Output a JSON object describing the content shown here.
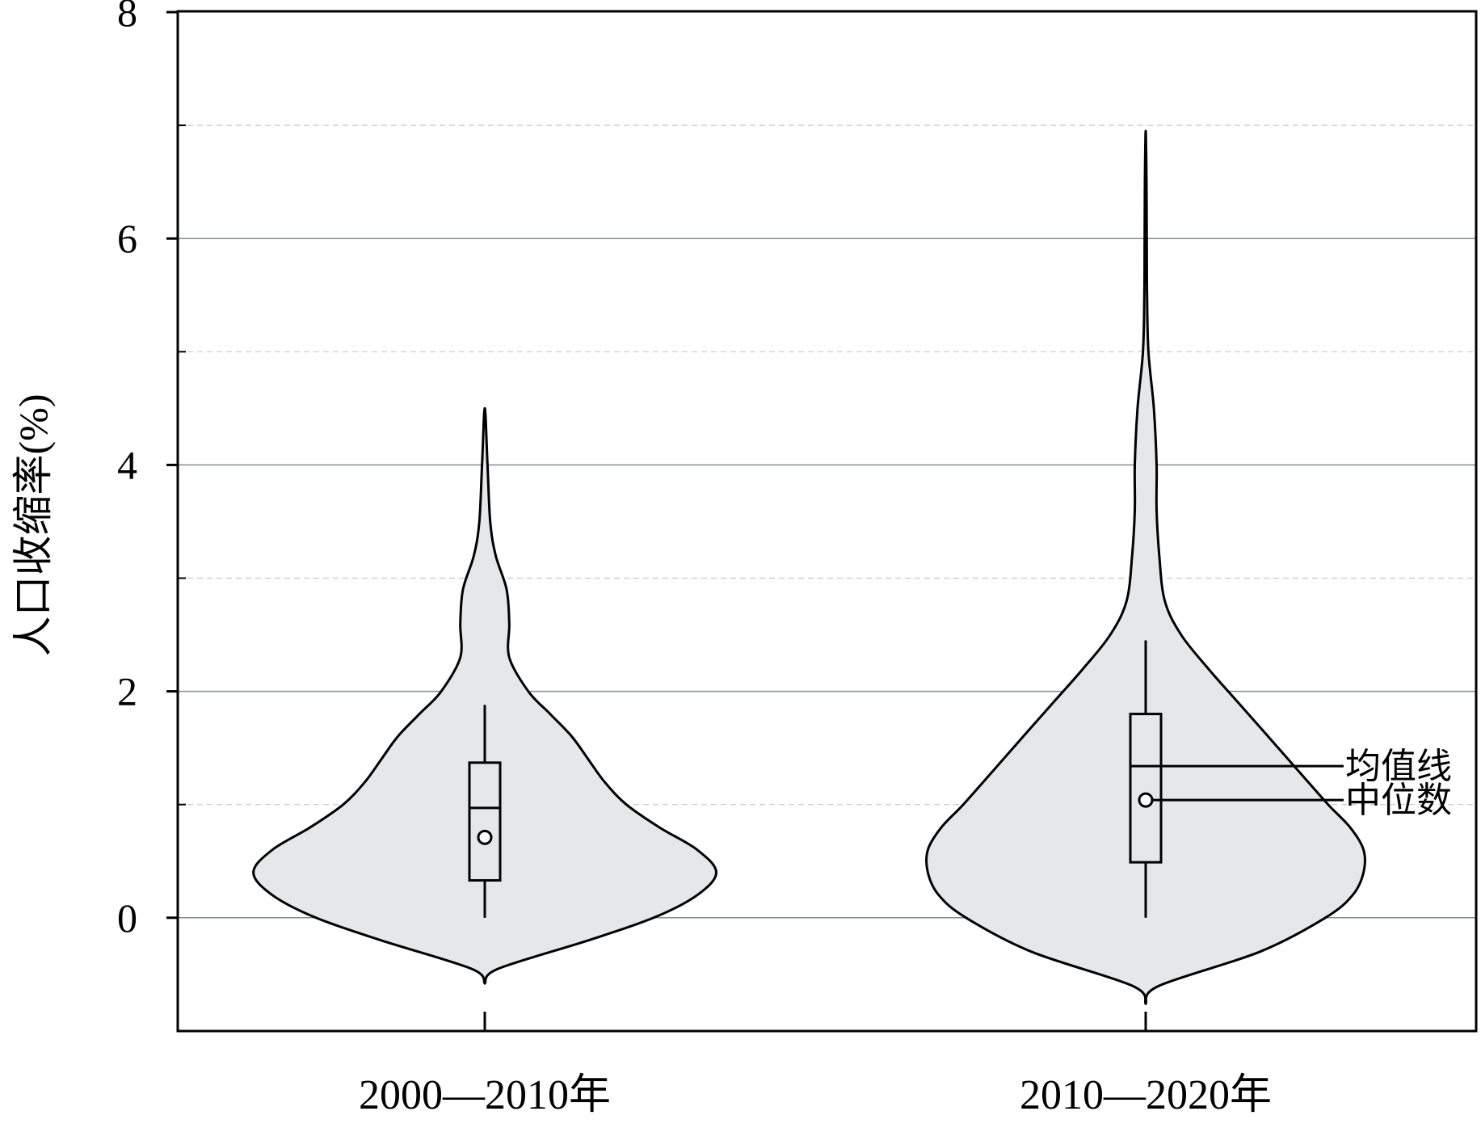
{
  "chart_data": {
    "type": "violin",
    "ylabel": "人口收缩率(%)",
    "xlabel": "",
    "ylim": [
      -1.0,
      8.0
    ],
    "y_ticks": [
      0,
      2,
      4,
      6,
      8
    ],
    "y_tick_labels": [
      "0",
      "2",
      "4",
      "6",
      "8"
    ],
    "minor_gridlines": [
      1,
      3,
      5,
      7
    ],
    "grid": true,
    "categories": [
      "2000—2010年",
      "2010—2020年"
    ],
    "series": [
      {
        "category": "2000—2010年",
        "mean": 0.97,
        "median": 0.71,
        "q1": 0.33,
        "q3": 1.37,
        "whisker_low": 0.0,
        "whisker_high": 1.88,
        "density": [
          {
            "y": -0.58,
            "half_width": 0.0
          },
          {
            "y": -0.45,
            "half_width": 0.05
          },
          {
            "y": -0.2,
            "half_width": 0.38
          },
          {
            "y": 0.0,
            "half_width": 0.62
          },
          {
            "y": 0.2,
            "half_width": 0.78
          },
          {
            "y": 0.4,
            "half_width": 0.85
          },
          {
            "y": 0.6,
            "half_width": 0.78
          },
          {
            "y": 0.8,
            "half_width": 0.64
          },
          {
            "y": 1.0,
            "half_width": 0.52
          },
          {
            "y": 1.2,
            "half_width": 0.44
          },
          {
            "y": 1.4,
            "half_width": 0.38
          },
          {
            "y": 1.6,
            "half_width": 0.32
          },
          {
            "y": 1.8,
            "half_width": 0.24
          },
          {
            "y": 2.0,
            "half_width": 0.16
          },
          {
            "y": 2.3,
            "half_width": 0.09
          },
          {
            "y": 2.6,
            "half_width": 0.09
          },
          {
            "y": 2.9,
            "half_width": 0.08
          },
          {
            "y": 3.2,
            "half_width": 0.04
          },
          {
            "y": 3.5,
            "half_width": 0.02
          },
          {
            "y": 4.0,
            "half_width": 0.01
          },
          {
            "y": 4.5,
            "half_width": 0.0
          }
        ]
      },
      {
        "category": "2010—2020年",
        "mean": 1.34,
        "median": 1.04,
        "q1": 0.49,
        "q3": 1.8,
        "whisker_low": 0.0,
        "whisker_high": 2.45,
        "density": [
          {
            "y": -0.76,
            "half_width": 0.0
          },
          {
            "y": -0.6,
            "half_width": 0.05
          },
          {
            "y": -0.3,
            "half_width": 0.42
          },
          {
            "y": 0.0,
            "half_width": 0.66
          },
          {
            "y": 0.2,
            "half_width": 0.76
          },
          {
            "y": 0.4,
            "half_width": 0.8
          },
          {
            "y": 0.6,
            "half_width": 0.8
          },
          {
            "y": 0.8,
            "half_width": 0.75
          },
          {
            "y": 1.0,
            "half_width": 0.67
          },
          {
            "y": 1.3,
            "half_width": 0.56
          },
          {
            "y": 1.6,
            "half_width": 0.45
          },
          {
            "y": 1.9,
            "half_width": 0.34
          },
          {
            "y": 2.2,
            "half_width": 0.23
          },
          {
            "y": 2.5,
            "half_width": 0.13
          },
          {
            "y": 2.8,
            "half_width": 0.07
          },
          {
            "y": 3.2,
            "half_width": 0.05
          },
          {
            "y": 3.6,
            "half_width": 0.04
          },
          {
            "y": 4.0,
            "half_width": 0.04
          },
          {
            "y": 4.5,
            "half_width": 0.03
          },
          {
            "y": 5.0,
            "half_width": 0.01
          },
          {
            "y": 5.5,
            "half_width": 0.005
          },
          {
            "y": 6.0,
            "half_width": 0.004
          },
          {
            "y": 6.5,
            "half_width": 0.003
          },
          {
            "y": 6.95,
            "half_width": 0.0
          }
        ]
      }
    ],
    "annotations": [
      {
        "text": "均值线",
        "target": "mean",
        "series_index": 1
      },
      {
        "text": "中位数",
        "target": "median",
        "series_index": 1
      }
    ],
    "colors": {
      "violin_fill": "#e6e7e9",
      "outline": "#000000",
      "major_grid": "#7f8f8f",
      "minor_grid": "#c8c8c8"
    }
  }
}
